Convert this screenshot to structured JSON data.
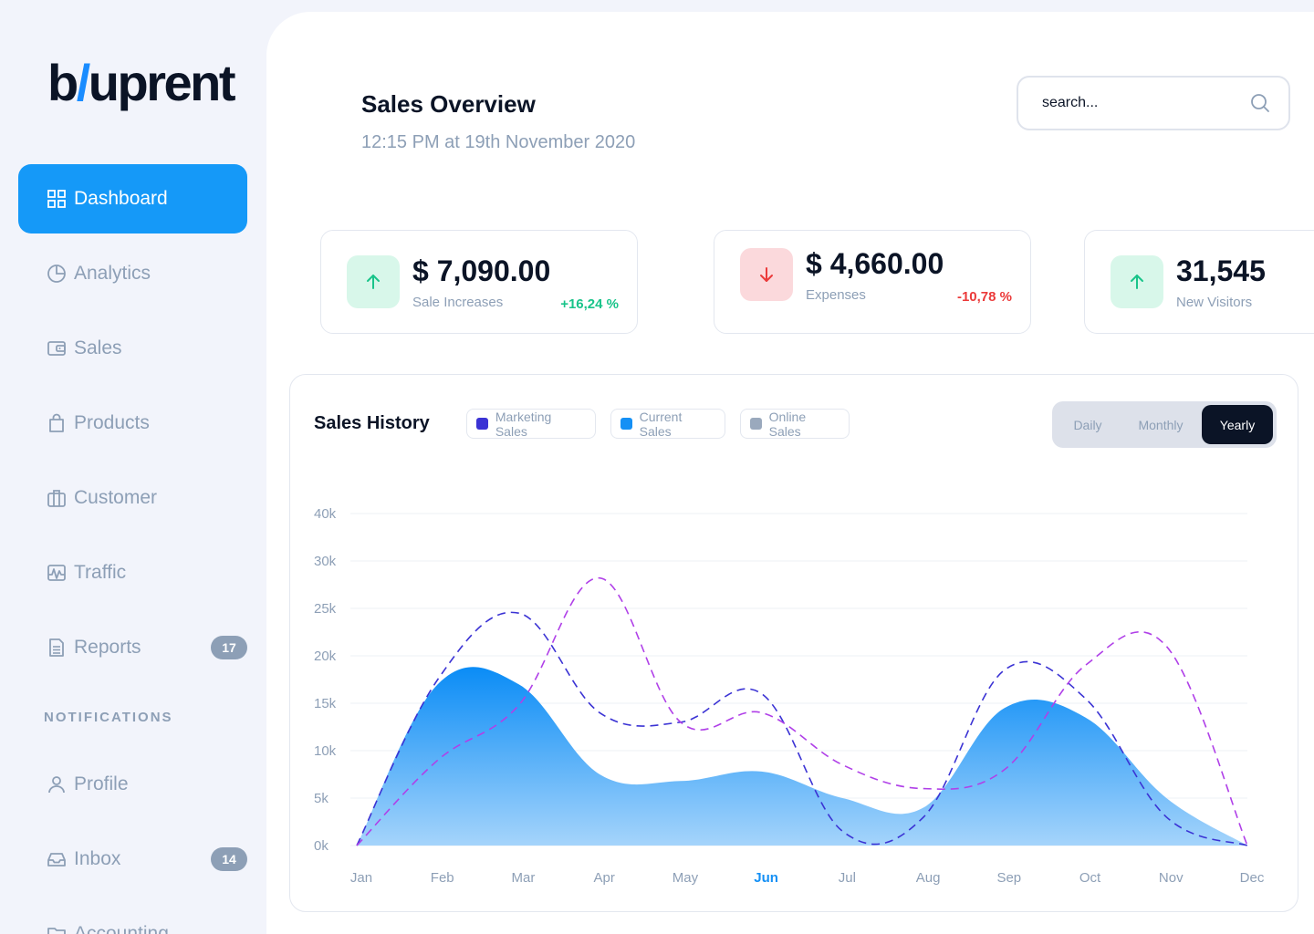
{
  "app": {
    "logo_main": "b/uprent"
  },
  "sidebar": {
    "items": [
      {
        "label": "Dashboard",
        "icon": "grid-icon",
        "active": true
      },
      {
        "label": "Analytics",
        "icon": "pie-chart-icon"
      },
      {
        "label": "Sales",
        "icon": "wallet-icon"
      },
      {
        "label": "Products",
        "icon": "shopping-bag-icon"
      },
      {
        "label": "Customer",
        "icon": "briefcase-icon"
      },
      {
        "label": "Traffic",
        "icon": "activity-icon"
      },
      {
        "label": "Reports",
        "icon": "document-icon",
        "badge": "17"
      }
    ],
    "section_label": "NOTIFICATIONS",
    "notification_items": [
      {
        "label": "Profile",
        "icon": "user-icon"
      },
      {
        "label": "Inbox",
        "icon": "inbox-icon",
        "badge": "14"
      },
      {
        "label": "Accounting",
        "icon": "folder-icon"
      }
    ]
  },
  "header": {
    "title": "Sales Overview",
    "subtitle": "12:15 PM at 19th November 2020",
    "search_placeholder": "search..."
  },
  "stats": [
    {
      "value": "$ 7,090.00",
      "label": "Sale Increases",
      "change": "+16,24 %",
      "trend": "up"
    },
    {
      "value": "$ 4,660.00",
      "label": "Expenses",
      "change": "-10,78 %",
      "trend": "down"
    },
    {
      "value": "31,545",
      "label": "New Visitors",
      "change": "",
      "trend": "up"
    }
  ],
  "colors": {
    "accent": "#1599f8",
    "marketing": "#3b33d4",
    "current": "#1590f5",
    "online": "#b040e8",
    "online_swatch": "#9aa9bd",
    "positive": "#19c48a",
    "negative": "#eb3a3a"
  },
  "chart_card": {
    "title": "Sales History",
    "legend": [
      "Marketing Sales",
      "Current Sales",
      "Online Sales"
    ],
    "periods": [
      "Daily",
      "Monthly",
      "Yearly"
    ],
    "active_period": "Yearly",
    "highlighted_month": "Jun"
  },
  "chart_data": {
    "type": "line",
    "title": "Sales History",
    "categories": [
      "Jan",
      "Feb",
      "Mar",
      "Apr",
      "May",
      "Jun",
      "Jul",
      "Aug",
      "Sep",
      "Oct",
      "Nov",
      "Dec"
    ],
    "y_ticks": [
      "0k",
      "5k",
      "10k",
      "15k",
      "20k",
      "25k",
      "30k",
      "40k"
    ],
    "y_tick_values": [
      0,
      5000,
      10000,
      15000,
      20000,
      25000,
      30000,
      40000
    ],
    "grid": true,
    "legend_position": "top",
    "series": [
      {
        "name": "Marketing Sales",
        "style": "dashed",
        "values": [
          0,
          17500,
          24500,
          14000,
          13000,
          16000,
          1500,
          3000,
          18500,
          15500,
          3000,
          0
        ]
      },
      {
        "name": "Current Sales",
        "style": "area",
        "values": [
          0,
          17000,
          17000,
          7500,
          6800,
          7800,
          5000,
          4000,
          14500,
          13500,
          5000,
          0
        ]
      },
      {
        "name": "Online Sales",
        "style": "dashed",
        "values": [
          0,
          9000,
          14800,
          28200,
          13000,
          14000,
          8500,
          6000,
          8000,
          19000,
          21000,
          0
        ]
      }
    ]
  }
}
